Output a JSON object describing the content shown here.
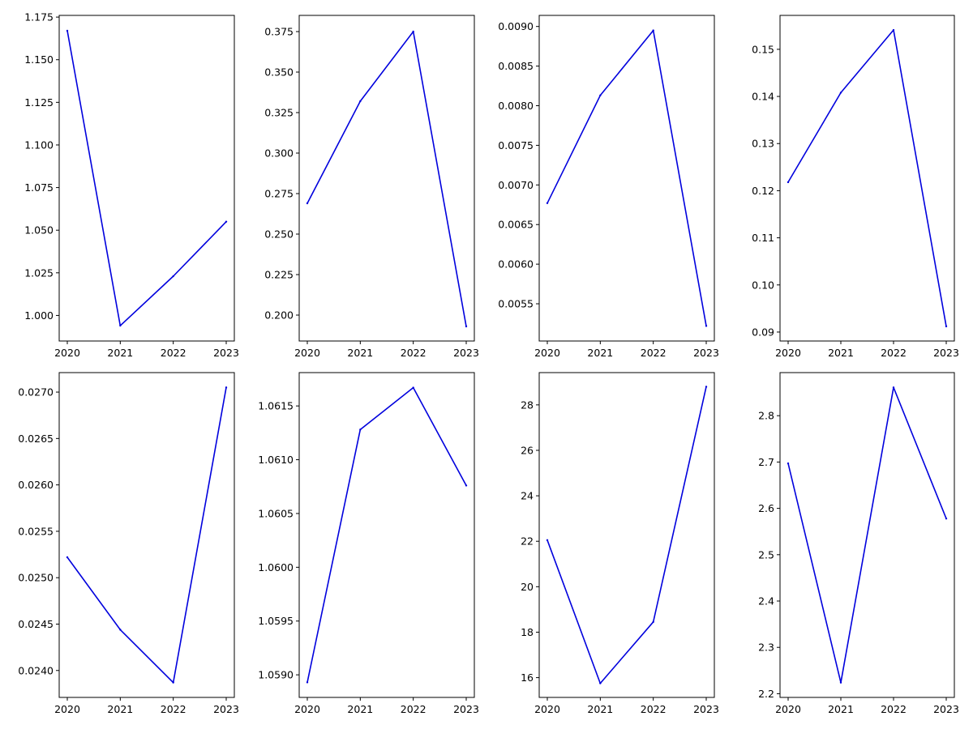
{
  "chart_data": [
    {
      "type": "line",
      "x": [
        "2020",
        "2021",
        "2022",
        "2023"
      ],
      "values": [
        1.167,
        0.994,
        1.023,
        1.055
      ],
      "color": "#0000dd",
      "ylim": [
        0.985,
        1.176
      ],
      "yticks": [
        1.0,
        1.025,
        1.05,
        1.075,
        1.1,
        1.125,
        1.15,
        1.175
      ],
      "ytick_labels": [
        "1.000",
        "1.025",
        "1.050",
        "1.075",
        "1.100",
        "1.125",
        "1.150",
        "1.175"
      ],
      "grid": false
    },
    {
      "type": "line",
      "x": [
        "2020",
        "2021",
        "2022",
        "2023"
      ],
      "values": [
        0.269,
        0.332,
        0.375,
        0.193
      ],
      "color": "#0000dd",
      "ylim": [
        0.184,
        0.385
      ],
      "yticks": [
        0.2,
        0.225,
        0.25,
        0.275,
        0.3,
        0.325,
        0.35,
        0.375
      ],
      "ytick_labels": [
        "0.200",
        "0.225",
        "0.250",
        "0.275",
        "0.300",
        "0.325",
        "0.350",
        "0.375"
      ],
      "grid": false
    },
    {
      "type": "line",
      "x": [
        "2020",
        "2021",
        "2022",
        "2023"
      ],
      "values": [
        0.00677,
        0.00813,
        0.00895,
        0.00522
      ],
      "color": "#0000dd",
      "ylim": [
        0.00503,
        0.00914
      ],
      "yticks": [
        0.0055,
        0.006,
        0.0065,
        0.007,
        0.0075,
        0.008,
        0.0085,
        0.009
      ],
      "ytick_labels": [
        "0.0055",
        "0.0060",
        "0.0065",
        "0.0070",
        "0.0075",
        "0.0080",
        "0.0085",
        "0.0090"
      ],
      "grid": false
    },
    {
      "type": "line",
      "x": [
        "2020",
        "2021",
        "2022",
        "2023"
      ],
      "values": [
        0.1218,
        0.1408,
        0.1541,
        0.0912
      ],
      "color": "#0000dd",
      "ylim": [
        0.0881,
        0.1572
      ],
      "yticks": [
        0.09,
        0.1,
        0.11,
        0.12,
        0.13,
        0.14,
        0.15
      ],
      "ytick_labels": [
        "0.09",
        "0.10",
        "0.11",
        "0.12",
        "0.13",
        "0.14",
        "0.15"
      ],
      "grid": false
    },
    {
      "type": "line",
      "x": [
        "2020",
        "2021",
        "2022",
        "2023"
      ],
      "values": [
        0.02522,
        0.02444,
        0.02387,
        0.02705
      ],
      "color": "#0000dd",
      "ylim": [
        0.02371,
        0.02721
      ],
      "yticks": [
        0.024,
        0.0245,
        0.025,
        0.0255,
        0.026,
        0.0265,
        0.027
      ],
      "ytick_labels": [
        "0.0240",
        "0.0245",
        "0.0250",
        "0.0255",
        "0.0260",
        "0.0265",
        "0.0270"
      ],
      "grid": false
    },
    {
      "type": "line",
      "x": [
        "2020",
        "2021",
        "2022",
        "2023"
      ],
      "values": [
        1.05893,
        1.06128,
        1.06167,
        1.06076
      ],
      "color": "#0000dd",
      "ylim": [
        1.05879,
        1.06181
      ],
      "yticks": [
        1.059,
        1.0595,
        1.06,
        1.0605,
        1.061,
        1.0615
      ],
      "ytick_labels": [
        "1.0590",
        "1.0595",
        "1.0600",
        "1.0605",
        "1.0610",
        "1.0615"
      ],
      "grid": false
    },
    {
      "type": "line",
      "x": [
        "2020",
        "2021",
        "2022",
        "2023"
      ],
      "values": [
        22.05,
        15.75,
        18.45,
        28.8
      ],
      "color": "#0000dd",
      "ylim": [
        15.13,
        29.42
      ],
      "yticks": [
        16,
        18,
        20,
        22,
        24,
        26,
        28
      ],
      "ytick_labels": [
        "16",
        "18",
        "20",
        "22",
        "24",
        "26",
        "28"
      ],
      "grid": false
    },
    {
      "type": "line",
      "x": [
        "2020",
        "2021",
        "2022",
        "2023"
      ],
      "values": [
        2.697,
        2.224,
        2.861,
        2.578
      ],
      "color": "#0000dd",
      "ylim": [
        2.192,
        2.893
      ],
      "yticks": [
        2.2,
        2.3,
        2.4,
        2.5,
        2.6,
        2.7,
        2.8
      ],
      "ytick_labels": [
        "2.2",
        "2.3",
        "2.4",
        "2.5",
        "2.6",
        "2.7",
        "2.8"
      ],
      "grid": false
    }
  ]
}
